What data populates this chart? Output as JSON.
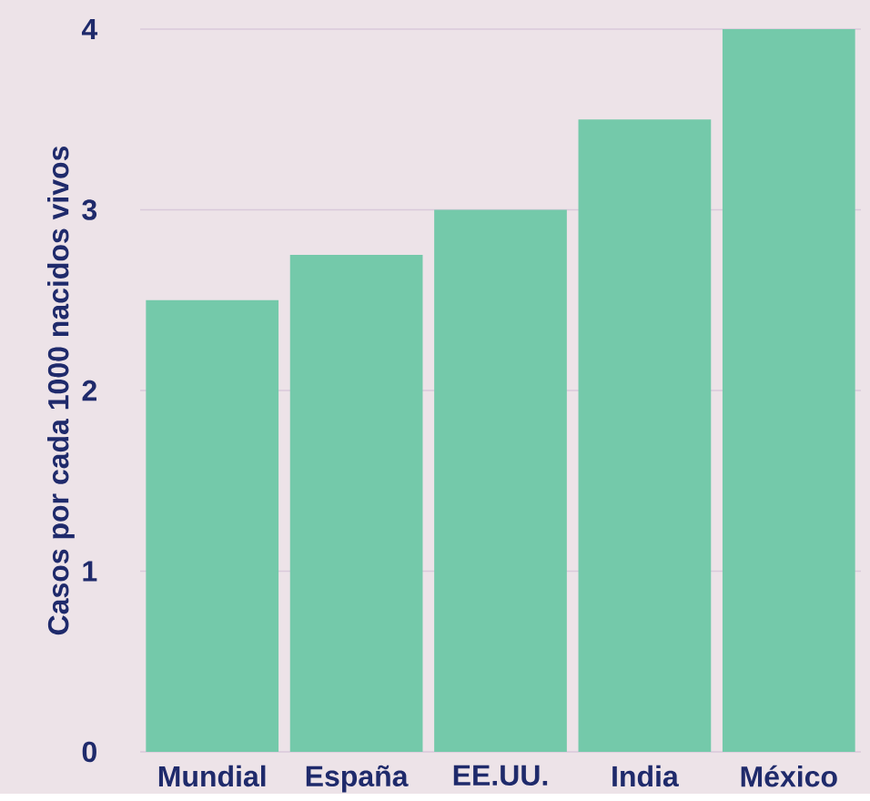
{
  "chart_data": {
    "type": "bar",
    "ylabel": "Casos por cada 1000 nacidos vivos",
    "categories": [
      "Mundial",
      "España",
      "EE.UU.",
      "India",
      "México"
    ],
    "values": [
      2.5,
      2.75,
      3,
      3.5,
      4
    ],
    "color": "#74c9aa",
    "ylim": [
      0,
      4
    ],
    "yticks": [
      0,
      1,
      2,
      3,
      4
    ],
    "grid": "y"
  }
}
